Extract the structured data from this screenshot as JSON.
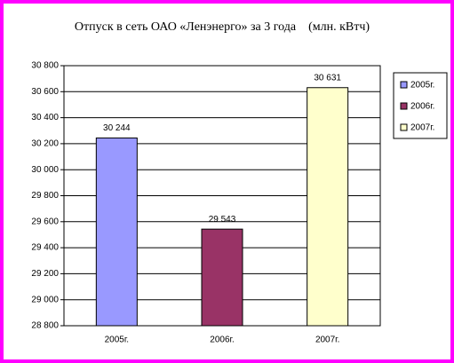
{
  "chart_data": {
    "type": "bar",
    "title": "Отпуск в сеть ОАО «Ленэнерго» за 3 года    (млн. кВтч)",
    "categories": [
      "2005г.",
      "2006г.",
      "2007г."
    ],
    "values": [
      30244,
      29543,
      30631
    ],
    "value_labels": [
      "30 244",
      "29 543",
      "30 631"
    ],
    "colors": [
      "#9999ff",
      "#993366",
      "#ffffcc"
    ],
    "ylim": [
      28800,
      30800
    ],
    "yticks": [
      {
        "value": 28800,
        "label": "28 800"
      },
      {
        "value": 29000,
        "label": "29 000"
      },
      {
        "value": 29200,
        "label": "29 200"
      },
      {
        "value": 29400,
        "label": "29 400"
      },
      {
        "value": 29600,
        "label": "29 600"
      },
      {
        "value": 29800,
        "label": "29 800"
      },
      {
        "value": 30000,
        "label": "30 000"
      },
      {
        "value": 30200,
        "label": "30 200"
      },
      {
        "value": 30400,
        "label": "30 400"
      },
      {
        "value": 30600,
        "label": "30 600"
      },
      {
        "value": 30800,
        "label": "30 800"
      }
    ],
    "grid": true,
    "legend": "right"
  }
}
